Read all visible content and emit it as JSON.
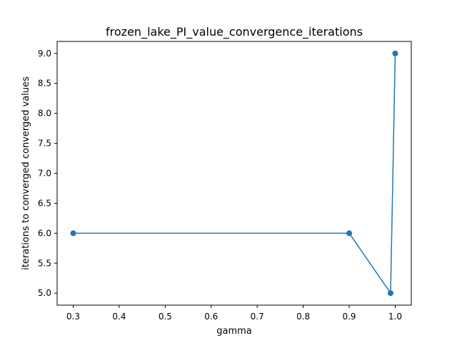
{
  "chart_data": {
    "type": "line",
    "title": "frozen_lake_PI_value_convergence_iterations",
    "xlabel": "gamma",
    "ylabel": "iterations to converged converged values",
    "x": [
      0.3,
      0.9,
      0.99,
      1.0
    ],
    "series": [
      {
        "values": [
          6,
          6,
          5,
          9
        ],
        "color": "#1f77b4",
        "marker": "circle"
      }
    ],
    "xlim": [
      0.265,
      1.035
    ],
    "ylim": [
      4.8,
      9.2
    ],
    "xticks": [
      0.3,
      0.4,
      0.5,
      0.6,
      0.7,
      0.8,
      0.9,
      1.0
    ],
    "xtick_labels": [
      "0.3",
      "0.4",
      "0.5",
      "0.6",
      "0.7",
      "0.8",
      "0.9",
      "1.0"
    ],
    "yticks": [
      5.0,
      5.5,
      6.0,
      6.5,
      7.0,
      7.5,
      8.0,
      8.5,
      9.0
    ],
    "ytick_labels": [
      "5.0",
      "5.5",
      "6.0",
      "6.5",
      "7.0",
      "7.5",
      "8.0",
      "8.5",
      "9.0"
    ],
    "grid": false,
    "legend": "none"
  }
}
